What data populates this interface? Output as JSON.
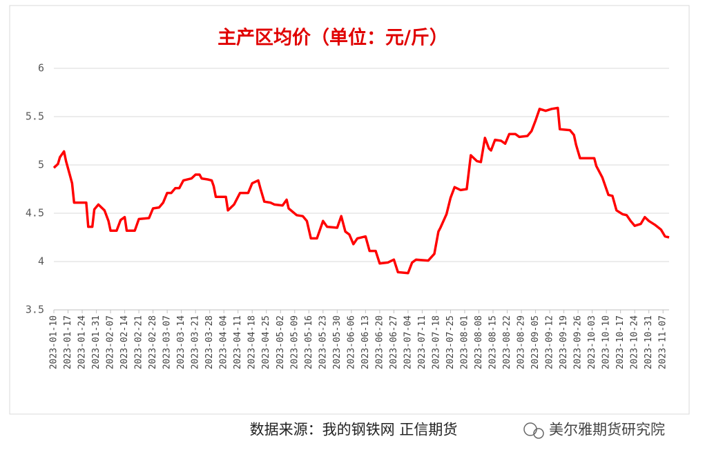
{
  "chart_data": {
    "type": "line",
    "title": "主产区均价（单位：元/斤）",
    "source": "数据来源：我的钢铁网 正信期货",
    "watermark": "美尔雅期货研究院",
    "x": [
      "2023-01-10",
      "2023-01-12",
      "2023-01-13",
      "2023-01-15",
      "2023-01-16",
      "2023-01-18",
      "2023-01-19",
      "2023-01-20",
      "2023-01-26",
      "2023-01-27",
      "2023-01-29",
      "2023-01-30",
      "2023-02-01",
      "2023-02-04",
      "2023-02-06",
      "2023-02-07",
      "2023-02-10",
      "2023-02-12",
      "2023-02-14",
      "2023-02-15",
      "2023-02-19",
      "2023-02-21",
      "2023-02-26",
      "2023-02-28",
      "2023-03-03",
      "2023-03-05",
      "2023-03-07",
      "2023-03-09",
      "2023-03-11",
      "2023-03-13",
      "2023-03-15",
      "2023-03-19",
      "2023-03-21",
      "2023-03-23",
      "2023-03-24",
      "2023-03-27",
      "2023-03-29",
      "2023-03-30",
      "2023-03-31",
      "2023-04-05",
      "2023-04-06",
      "2023-04-09",
      "2023-04-12",
      "2023-04-16",
      "2023-04-18",
      "2023-04-21",
      "2023-04-22",
      "2023-04-24",
      "2023-04-27",
      "2023-04-29",
      "2023-05-03",
      "2023-05-05",
      "2023-05-06",
      "2023-05-10",
      "2023-05-13",
      "2023-05-15",
      "2023-05-17",
      "2023-05-20",
      "2023-05-23",
      "2023-05-25",
      "2023-05-30",
      "2023-06-01",
      "2023-06-03",
      "2023-06-05",
      "2023-06-07",
      "2023-06-09",
      "2023-06-13",
      "2023-06-15",
      "2023-06-18",
      "2023-06-20",
      "2023-06-24",
      "2023-06-27",
      "2023-06-29",
      "2023-07-04",
      "2023-07-06",
      "2023-07-08",
      "2023-07-14",
      "2023-07-17",
      "2023-07-19",
      "2023-07-20",
      "2023-07-23",
      "2023-07-25",
      "2023-07-27",
      "2023-07-30",
      "2023-08-02",
      "2023-08-04",
      "2023-08-07",
      "2023-08-09",
      "2023-08-11",
      "2023-08-13",
      "2023-08-14",
      "2023-08-16",
      "2023-08-19",
      "2023-08-21",
      "2023-08-23",
      "2023-08-26",
      "2023-08-28",
      "2023-09-01",
      "2023-09-03",
      "2023-09-05",
      "2023-09-07",
      "2023-09-10",
      "2023-09-13",
      "2023-09-16",
      "2023-09-17",
      "2023-09-22",
      "2023-09-24",
      "2023-09-25",
      "2023-09-27",
      "2023-10-04",
      "2023-10-05",
      "2023-10-08",
      "2023-10-11",
      "2023-10-13",
      "2023-10-15",
      "2023-10-18",
      "2023-10-20",
      "2023-10-22",
      "2023-10-24",
      "2023-10-27",
      "2023-10-29",
      "2023-10-31",
      "2023-11-03",
      "2023-11-06",
      "2023-11-08",
      "2023-11-10"
    ],
    "series": [
      {
        "color": "#ff0000",
        "values": [
          4.97,
          5.01,
          5.08,
          5.14,
          5.04,
          4.89,
          4.81,
          4.61,
          4.61,
          4.36,
          4.36,
          4.54,
          4.59,
          4.53,
          4.42,
          4.32,
          4.32,
          4.43,
          4.46,
          4.32,
          4.32,
          4.44,
          4.45,
          4.55,
          4.56,
          4.61,
          4.71,
          4.71,
          4.76,
          4.76,
          4.84,
          4.86,
          4.9,
          4.9,
          4.86,
          4.85,
          4.84,
          4.78,
          4.67,
          4.67,
          4.53,
          4.59,
          4.71,
          4.71,
          4.81,
          4.84,
          4.76,
          4.62,
          4.61,
          4.59,
          4.58,
          4.64,
          4.55,
          4.48,
          4.47,
          4.42,
          4.24,
          4.24,
          4.42,
          4.36,
          4.35,
          4.47,
          4.31,
          4.28,
          4.18,
          4.24,
          4.26,
          4.11,
          4.11,
          3.98,
          3.99,
          4.02,
          3.89,
          3.88,
          3.99,
          4.02,
          4.01,
          4.08,
          4.31,
          4.35,
          4.49,
          4.66,
          4.77,
          4.74,
          4.75,
          5.1,
          5.04,
          5.03,
          5.28,
          5.17,
          5.15,
          5.26,
          5.25,
          5.22,
          5.32,
          5.32,
          5.29,
          5.3,
          5.35,
          5.46,
          5.58,
          5.56,
          5.58,
          5.59,
          5.37,
          5.36,
          5.31,
          5.21,
          5.07,
          5.07,
          4.99,
          4.87,
          4.69,
          4.68,
          4.53,
          4.49,
          4.48,
          4.42,
          4.37,
          4.39,
          4.46,
          4.42,
          4.38,
          4.33,
          4.26,
          4.25
        ]
      }
    ],
    "xlim": [
      "2023-01-10",
      "2023-11-10"
    ],
    "xticks": [
      "2023-01-10",
      "2023-01-17",
      "2023-01-24",
      "2023-01-31",
      "2023-02-07",
      "2023-02-14",
      "2023-02-21",
      "2023-02-28",
      "2023-03-07",
      "2023-03-14",
      "2023-03-21",
      "2023-03-28",
      "2023-04-04",
      "2023-04-11",
      "2023-04-18",
      "2023-04-25",
      "2023-05-02",
      "2023-05-09",
      "2023-05-16",
      "2023-05-23",
      "2023-05-30",
      "2023-06-06",
      "2023-06-13",
      "2023-06-20",
      "2023-06-27",
      "2023-07-04",
      "2023-07-11",
      "2023-07-18",
      "2023-07-25",
      "2023-08-01",
      "2023-08-08",
      "2023-08-15",
      "2023-08-22",
      "2023-08-29",
      "2023-09-05",
      "2023-09-12",
      "2023-09-19",
      "2023-09-26",
      "2023-10-03",
      "2023-10-10",
      "2023-10-17",
      "2023-10-24",
      "2023-10-31",
      "2023-11-07"
    ],
    "ylim": [
      3.5,
      6
    ],
    "yticks": [
      3.5,
      4,
      4.5,
      5,
      5.5,
      6
    ],
    "grid": true
  }
}
